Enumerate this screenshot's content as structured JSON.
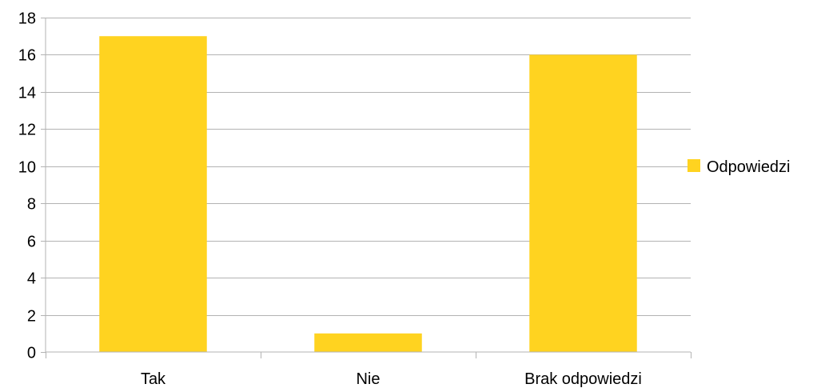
{
  "chart_data": {
    "type": "bar",
    "categories": [
      "Tak",
      "Nie",
      "Brak odpowiedzi"
    ],
    "series": [
      {
        "name": "Odpowiedzi",
        "values": [
          17,
          1,
          16
        ],
        "color": "#FFD320"
      }
    ],
    "ylim": [
      0,
      18
    ],
    "yticks": [
      0,
      2,
      4,
      6,
      8,
      10,
      12,
      14,
      16,
      18
    ],
    "grid": true,
    "legend": "right",
    "title": "",
    "xlabel": "",
    "ylabel": ""
  }
}
